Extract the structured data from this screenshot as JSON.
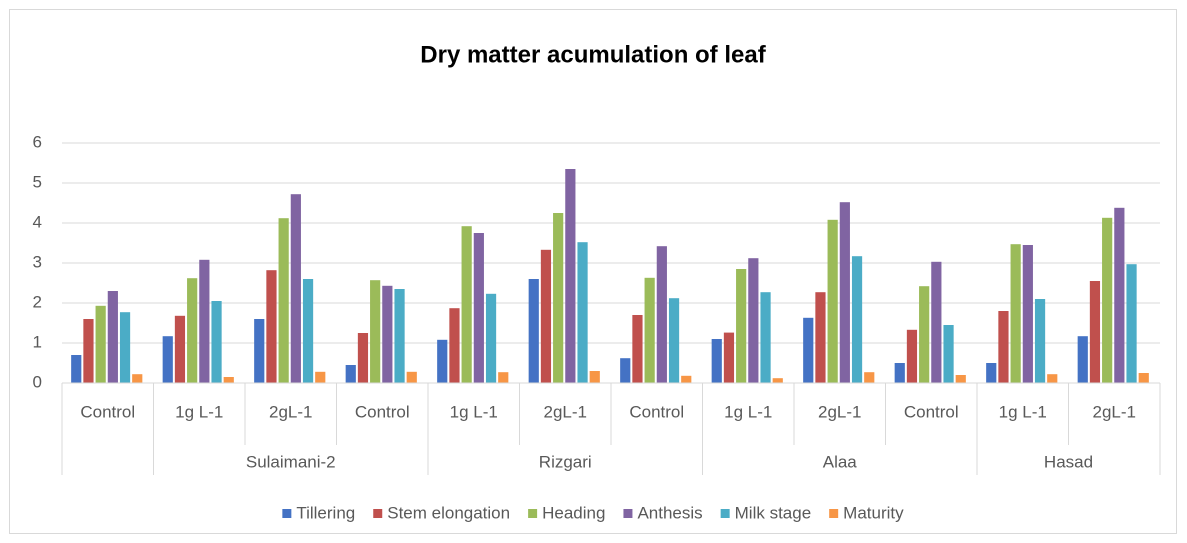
{
  "chart_data": {
    "type": "bar",
    "title": "Dry matter acumulation of leaf",
    "categories": [
      "Control",
      "1g L-1",
      "2gL-1",
      "Control",
      "1g L-1",
      "2gL-1",
      "Control",
      "1g L-1",
      "2gL-1",
      "Control",
      "1g L-1",
      "2gL-1"
    ],
    "groups": [
      {
        "name": null,
        "size": 1
      },
      {
        "name": "Sulaimani-2",
        "size": 3
      },
      {
        "name": "Rizgari",
        "size": 3
      },
      {
        "name": "Alaa",
        "size": 3
      },
      {
        "name": "Hasad",
        "size": 2
      }
    ],
    "series": [
      {
        "name": "Tillering",
        "color": "#4472c4",
        "values": [
          0.7,
          1.17,
          1.6,
          0.45,
          1.08,
          2.6,
          0.62,
          1.1,
          1.63,
          0.5,
          0.5,
          1.17
        ]
      },
      {
        "name": "Stem elongation",
        "color": "#c0504d",
        "values": [
          1.6,
          1.68,
          2.82,
          1.25,
          1.87,
          3.33,
          1.7,
          1.26,
          2.27,
          1.33,
          1.8,
          2.55
        ]
      },
      {
        "name": "Heading",
        "color": "#9bbb59",
        "values": [
          1.93,
          2.62,
          4.12,
          2.57,
          3.92,
          4.25,
          2.63,
          2.85,
          4.08,
          2.42,
          3.47,
          4.13
        ]
      },
      {
        "name": "Anthesis",
        "color": "#8064a2",
        "values": [
          2.3,
          3.08,
          4.72,
          2.43,
          3.75,
          5.35,
          3.42,
          3.12,
          4.52,
          3.03,
          3.45,
          4.38
        ]
      },
      {
        "name": "Milk stage",
        "color": "#4bacc6",
        "values": [
          1.77,
          2.05,
          2.6,
          2.35,
          2.23,
          3.52,
          2.12,
          2.27,
          3.17,
          1.45,
          2.1,
          2.97
        ]
      },
      {
        "name": "Maturity",
        "color": "#f79646",
        "values": [
          0.22,
          0.15,
          0.28,
          0.28,
          0.27,
          0.3,
          0.18,
          0.12,
          0.27,
          0.2,
          0.22,
          0.25
        ]
      }
    ],
    "ylim": [
      0,
      6
    ],
    "yticks": [
      0,
      1,
      2,
      3,
      4,
      5,
      6
    ],
    "grid": true,
    "legend": "bottom"
  }
}
